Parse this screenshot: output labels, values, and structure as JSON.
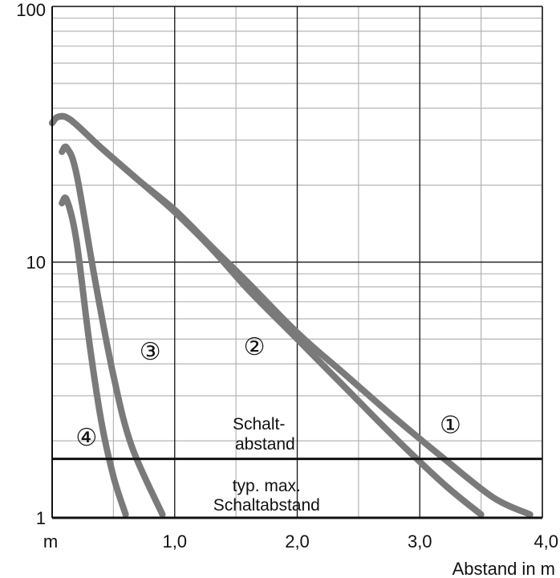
{
  "chart_data": {
    "type": "line",
    "title": "",
    "xlabel": "Abstand in m",
    "x_unit_label": "m",
    "ylabel": "",
    "xlim": [
      0,
      4.0
    ],
    "ylim": [
      1,
      100
    ],
    "yscale": "log",
    "grid": true,
    "x_ticks": [
      {
        "value": 1.0,
        "label": "1,0"
      },
      {
        "value": 2.0,
        "label": "2,0"
      },
      {
        "value": 3.0,
        "label": "3,0"
      },
      {
        "value": 4.0,
        "label": "4,0"
      }
    ],
    "y_ticks": [
      {
        "value": 1,
        "label": "1"
      },
      {
        "value": 10,
        "label": "10"
      },
      {
        "value": 100,
        "label": "100"
      }
    ],
    "line_color": "#7a7a7a",
    "series": [
      {
        "marker": "①",
        "x": [
          0.0,
          0.05,
          0.15,
          0.4,
          0.7,
          1.0,
          1.3,
          1.6,
          2.0,
          2.4,
          2.8,
          3.2,
          3.6,
          3.9
        ],
        "y": [
          35,
          37,
          36,
          28,
          21,
          16,
          11.5,
          8.3,
          5.3,
          3.6,
          2.45,
          1.7,
          1.2,
          1.03
        ]
      },
      {
        "marker": "②",
        "x": [
          0.0,
          0.05,
          0.15,
          0.4,
          0.7,
          1.0,
          1.3,
          1.6,
          2.0,
          2.4,
          2.8,
          3.2,
          3.5
        ],
        "y": [
          35,
          37,
          36,
          28,
          21,
          15.7,
          11.3,
          7.8,
          5.0,
          3.2,
          2.05,
          1.35,
          1.03
        ]
      },
      {
        "marker": "③",
        "x": [
          0.08,
          0.12,
          0.2,
          0.35,
          0.5,
          0.65,
          0.9
        ],
        "y": [
          27,
          28,
          22,
          8.5,
          3.6,
          1.9,
          1.03
        ]
      },
      {
        "marker": "④",
        "x": [
          0.08,
          0.12,
          0.2,
          0.3,
          0.4,
          0.5,
          0.6
        ],
        "y": [
          17,
          17.5,
          12,
          5.0,
          2.4,
          1.45,
          1.03
        ]
      }
    ],
    "threshold": {
      "value": 1.7,
      "label_above": [
        "Schalt-",
        "abstand"
      ],
      "label_below": [
        "typ. max.",
        "Schaltabstand"
      ]
    },
    "marker_positions": [
      {
        "marker": "①",
        "x": 3.25,
        "y": 2.3
      },
      {
        "marker": "②",
        "x": 1.65,
        "y": 4.65
      },
      {
        "marker": "③",
        "x": 0.8,
        "y": 4.45
      },
      {
        "marker": "④",
        "x": 0.28,
        "y": 2.05
      }
    ]
  }
}
